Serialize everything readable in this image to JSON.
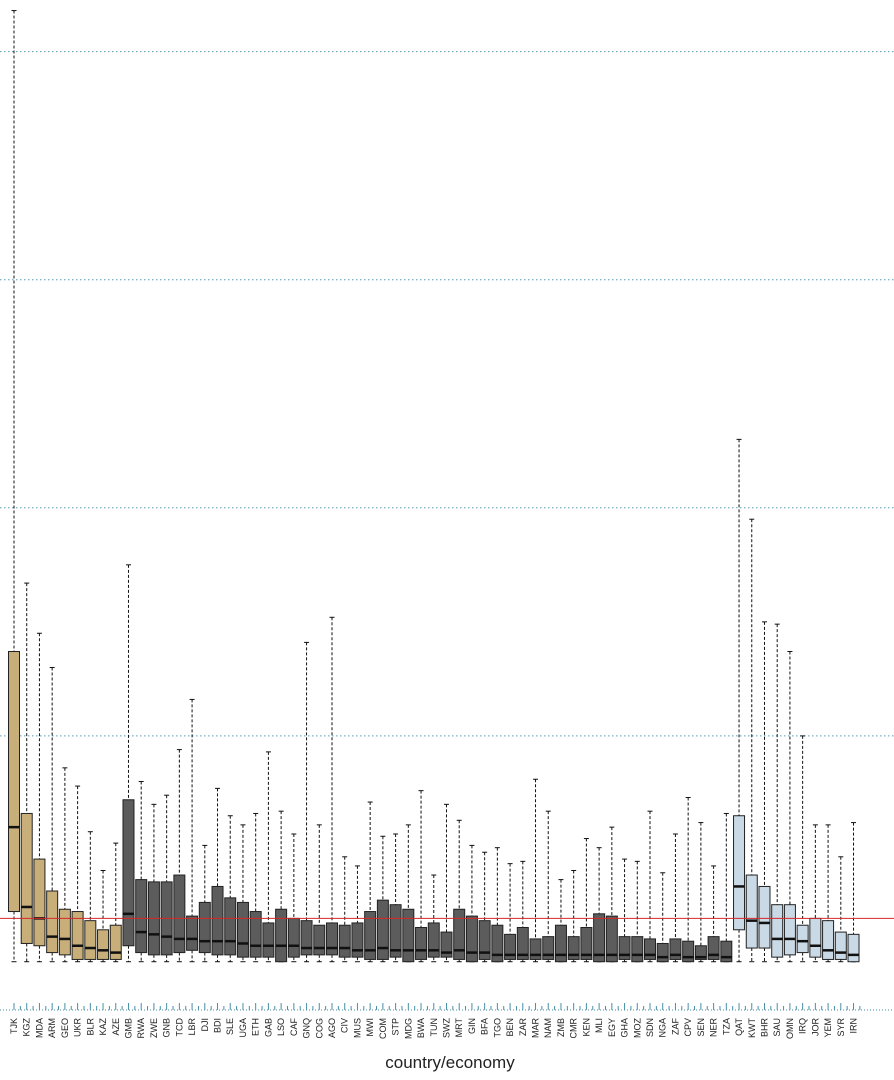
{
  "chart_data": {
    "type": "box",
    "xlabel": "country/economy",
    "ylabel": "",
    "ylim": [
      0,
      4.2
    ],
    "reference_line": {
      "value": 0.2,
      "color": "#d62728"
    },
    "grid": {
      "style": "dotted",
      "values": [
        1,
        2,
        3,
        4
      ],
      "color": "#5b9bb5"
    },
    "groups": [
      {
        "color": "#c8ae78",
        "dark": "#3b3020",
        "categories": [
          "TJK",
          "KGZ",
          "MDA",
          "ARM",
          "GEO",
          "UKR",
          "BLR",
          "KAZ",
          "AZE"
        ]
      },
      {
        "color": "#5c5c5c",
        "dark": "#1a1a1a",
        "categories": [
          "GMB",
          "RWA",
          "ZWE",
          "GNB",
          "TCD",
          "LBR",
          "DJI",
          "BDI",
          "SLE",
          "UGA",
          "ETH",
          "GAB",
          "LSO",
          "CAF",
          "GNQ",
          "COG",
          "AGO",
          "CIV",
          "MUS",
          "MWI",
          "COM",
          "STP",
          "MDG",
          "BWA",
          "TUN",
          "SWZ",
          "MRT",
          "GIN",
          "BFA",
          "TGO",
          "BEN",
          "ZAR",
          "MAR",
          "NAM",
          "ZMB",
          "CMR",
          "KEN",
          "MLI",
          "EGY",
          "GHA",
          "MOZ",
          "SDN",
          "NGA",
          "ZAF",
          "CPV",
          "SEN",
          "NER",
          "TZA"
        ]
      },
      {
        "color": "#c9d9e5",
        "dark": "#1a1a1a",
        "categories": [
          "QAT",
          "KWT",
          "BHR",
          "SAU",
          "OMN",
          "IRQ",
          "JOR",
          "YEM",
          "SYR",
          "IRN"
        ]
      }
    ],
    "boxes": [
      {
        "cat": "TJK",
        "min": 0.01,
        "q1": 0.23,
        "median": 0.6,
        "q3": 1.37,
        "max": 4.18
      },
      {
        "cat": "KGZ",
        "min": 0.01,
        "q1": 0.09,
        "median": 0.25,
        "q3": 0.66,
        "max": 1.67
      },
      {
        "cat": "MDA",
        "min": 0.01,
        "q1": 0.08,
        "median": 0.2,
        "q3": 0.46,
        "max": 1.45
      },
      {
        "cat": "ARM",
        "min": 0.01,
        "q1": 0.05,
        "median": 0.12,
        "q3": 0.32,
        "max": 1.3
      },
      {
        "cat": "GEO",
        "min": 0.01,
        "q1": 0.04,
        "median": 0.11,
        "q3": 0.24,
        "max": 0.86
      },
      {
        "cat": "UKR",
        "min": 0.01,
        "q1": 0.02,
        "median": 0.08,
        "q3": 0.23,
        "max": 0.78
      },
      {
        "cat": "BLR",
        "min": 0.01,
        "q1": 0.02,
        "median": 0.07,
        "q3": 0.19,
        "max": 0.58
      },
      {
        "cat": "KAZ",
        "min": 0.01,
        "q1": 0.02,
        "median": 0.06,
        "q3": 0.15,
        "max": 0.41
      },
      {
        "cat": "AZE",
        "min": 0.01,
        "q1": 0.02,
        "median": 0.05,
        "q3": 0.17,
        "max": 0.53
      },
      {
        "cat": "GMB",
        "min": 0.01,
        "q1": 0.08,
        "median": 0.22,
        "q3": 0.72,
        "max": 1.75
      },
      {
        "cat": "RWA",
        "min": 0.01,
        "q1": 0.05,
        "median": 0.14,
        "q3": 0.37,
        "max": 0.8
      },
      {
        "cat": "ZWE",
        "min": 0.01,
        "q1": 0.04,
        "median": 0.13,
        "q3": 0.36,
        "max": 0.7
      },
      {
        "cat": "GNB",
        "min": 0.01,
        "q1": 0.04,
        "median": 0.12,
        "q3": 0.36,
        "max": 0.74
      },
      {
        "cat": "TCD",
        "min": 0.01,
        "q1": 0.05,
        "median": 0.11,
        "q3": 0.39,
        "max": 0.94
      },
      {
        "cat": "LBR",
        "min": 0.01,
        "q1": 0.06,
        "median": 0.11,
        "q3": 0.21,
        "max": 1.16
      },
      {
        "cat": "DJI",
        "min": 0.01,
        "q1": 0.05,
        "median": 0.1,
        "q3": 0.27,
        "max": 0.52
      },
      {
        "cat": "BDI",
        "min": 0.01,
        "q1": 0.04,
        "median": 0.1,
        "q3": 0.34,
        "max": 0.77
      },
      {
        "cat": "SLE",
        "min": 0.01,
        "q1": 0.04,
        "median": 0.1,
        "q3": 0.29,
        "max": 0.65
      },
      {
        "cat": "UGA",
        "min": 0.01,
        "q1": 0.03,
        "median": 0.09,
        "q3": 0.27,
        "max": 0.61
      },
      {
        "cat": "ETH",
        "min": 0.01,
        "q1": 0.03,
        "median": 0.08,
        "q3": 0.23,
        "max": 0.66
      },
      {
        "cat": "GAB",
        "min": 0.01,
        "q1": 0.03,
        "median": 0.08,
        "q3": 0.18,
        "max": 0.93
      },
      {
        "cat": "LSO",
        "min": 0.01,
        "q1": 0.01,
        "median": 0.08,
        "q3": 0.24,
        "max": 0.67
      },
      {
        "cat": "CAF",
        "min": 0.01,
        "q1": 0.03,
        "median": 0.08,
        "q3": 0.2,
        "max": 0.57
      },
      {
        "cat": "GNQ",
        "min": 0.01,
        "q1": 0.04,
        "median": 0.07,
        "q3": 0.19,
        "max": 1.41
      },
      {
        "cat": "COG",
        "min": 0.01,
        "q1": 0.04,
        "median": 0.07,
        "q3": 0.17,
        "max": 0.61
      },
      {
        "cat": "AGO",
        "min": 0.01,
        "q1": 0.04,
        "median": 0.07,
        "q3": 0.18,
        "max": 1.52
      },
      {
        "cat": "CIV",
        "min": 0.01,
        "q1": 0.03,
        "median": 0.07,
        "q3": 0.17,
        "max": 0.47
      },
      {
        "cat": "MUS",
        "min": 0.01,
        "q1": 0.03,
        "median": 0.06,
        "q3": 0.18,
        "max": 0.43
      },
      {
        "cat": "MWI",
        "min": 0.01,
        "q1": 0.02,
        "median": 0.06,
        "q3": 0.23,
        "max": 0.71
      },
      {
        "cat": "COM",
        "min": 0.01,
        "q1": 0.02,
        "median": 0.07,
        "q3": 0.28,
        "max": 0.56
      },
      {
        "cat": "STP",
        "min": 0.01,
        "q1": 0.03,
        "median": 0.06,
        "q3": 0.26,
        "max": 0.57
      },
      {
        "cat": "MDG",
        "min": 0.01,
        "q1": 0.01,
        "median": 0.06,
        "q3": 0.24,
        "max": 0.61
      },
      {
        "cat": "BWA",
        "min": 0.01,
        "q1": 0.02,
        "median": 0.06,
        "q3": 0.16,
        "max": 0.76
      },
      {
        "cat": "TUN",
        "min": 0.01,
        "q1": 0.03,
        "median": 0.06,
        "q3": 0.18,
        "max": 0.39
      },
      {
        "cat": "SWZ",
        "min": 0.01,
        "q1": 0.03,
        "median": 0.05,
        "q3": 0.14,
        "max": 0.7
      },
      {
        "cat": "MRT",
        "min": 0.01,
        "q1": 0.02,
        "median": 0.06,
        "q3": 0.24,
        "max": 0.63
      },
      {
        "cat": "GIN",
        "min": 0.01,
        "q1": 0.01,
        "median": 0.05,
        "q3": 0.21,
        "max": 0.52
      },
      {
        "cat": "BFA",
        "min": 0.01,
        "q1": 0.02,
        "median": 0.05,
        "q3": 0.19,
        "max": 0.49
      },
      {
        "cat": "TGO",
        "min": 0.01,
        "q1": 0.01,
        "median": 0.04,
        "q3": 0.17,
        "max": 0.51
      },
      {
        "cat": "BEN",
        "min": 0.01,
        "q1": 0.02,
        "median": 0.04,
        "q3": 0.13,
        "max": 0.44
      },
      {
        "cat": "ZAR",
        "min": 0.01,
        "q1": 0.02,
        "median": 0.04,
        "q3": 0.16,
        "max": 0.45
      },
      {
        "cat": "MAR",
        "min": 0.01,
        "q1": 0.02,
        "median": 0.04,
        "q3": 0.11,
        "max": 0.81
      },
      {
        "cat": "NAM",
        "min": 0.01,
        "q1": 0.02,
        "median": 0.04,
        "q3": 0.12,
        "max": 0.67
      },
      {
        "cat": "ZMB",
        "min": 0.01,
        "q1": 0.01,
        "median": 0.04,
        "q3": 0.17,
        "max": 0.37
      },
      {
        "cat": "CMR",
        "min": 0.01,
        "q1": 0.02,
        "median": 0.04,
        "q3": 0.12,
        "max": 0.41
      },
      {
        "cat": "KEN",
        "min": 0.01,
        "q1": 0.02,
        "median": 0.04,
        "q3": 0.16,
        "max": 0.55
      },
      {
        "cat": "MLI",
        "min": 0.01,
        "q1": 0.01,
        "median": 0.04,
        "q3": 0.22,
        "max": 0.51
      },
      {
        "cat": "EGY",
        "min": 0.01,
        "q1": 0.01,
        "median": 0.04,
        "q3": 0.21,
        "max": 0.6
      },
      {
        "cat": "GHA",
        "min": 0.01,
        "q1": 0.02,
        "median": 0.04,
        "q3": 0.12,
        "max": 0.46
      },
      {
        "cat": "MOZ",
        "min": 0.01,
        "q1": 0.01,
        "median": 0.04,
        "q3": 0.12,
        "max": 0.45
      },
      {
        "cat": "SDN",
        "min": 0.01,
        "q1": 0.02,
        "median": 0.04,
        "q3": 0.11,
        "max": 0.67
      },
      {
        "cat": "NGA",
        "min": 0.01,
        "q1": 0.01,
        "median": 0.03,
        "q3": 0.09,
        "max": 0.4
      },
      {
        "cat": "ZAF",
        "min": 0.01,
        "q1": 0.02,
        "median": 0.04,
        "q3": 0.11,
        "max": 0.57
      },
      {
        "cat": "CPV",
        "min": 0.01,
        "q1": 0.01,
        "median": 0.03,
        "q3": 0.1,
        "max": 0.73
      },
      {
        "cat": "SEN",
        "min": 0.01,
        "q1": 0.02,
        "median": 0.03,
        "q3": 0.08,
        "max": 0.62
      },
      {
        "cat": "NER",
        "min": 0.01,
        "q1": 0.02,
        "median": 0.04,
        "q3": 0.12,
        "max": 0.43
      },
      {
        "cat": "TZA",
        "min": 0.01,
        "q1": 0.01,
        "median": 0.03,
        "q3": 0.1,
        "max": 0.66
      },
      {
        "cat": "QAT",
        "min": 0.01,
        "q1": 0.15,
        "median": 0.34,
        "q3": 0.65,
        "max": 2.3
      },
      {
        "cat": "KWT",
        "min": 0.01,
        "q1": 0.07,
        "median": 0.19,
        "q3": 0.39,
        "max": 1.95
      },
      {
        "cat": "BHR",
        "min": 0.01,
        "q1": 0.07,
        "median": 0.18,
        "q3": 0.34,
        "max": 1.5
      },
      {
        "cat": "SAU",
        "min": 0.01,
        "q1": 0.03,
        "median": 0.11,
        "q3": 0.26,
        "max": 1.49
      },
      {
        "cat": "OMN",
        "min": 0.01,
        "q1": 0.04,
        "median": 0.11,
        "q3": 0.26,
        "max": 1.37
      },
      {
        "cat": "IRQ",
        "min": 0.01,
        "q1": 0.05,
        "median": 0.1,
        "q3": 0.17,
        "max": 1.0
      },
      {
        "cat": "JOR",
        "min": 0.01,
        "q1": 0.03,
        "median": 0.08,
        "q3": 0.2,
        "max": 0.61
      },
      {
        "cat": "YEM",
        "min": 0.01,
        "q1": 0.02,
        "median": 0.06,
        "q3": 0.19,
        "max": 0.61
      },
      {
        "cat": "SYR",
        "min": 0.01,
        "q1": 0.02,
        "median": 0.05,
        "q3": 0.14,
        "max": 0.47
      },
      {
        "cat": "IRN",
        "min": 0.01,
        "q1": 0.01,
        "median": 0.04,
        "q3": 0.13,
        "max": 0.62
      }
    ]
  }
}
